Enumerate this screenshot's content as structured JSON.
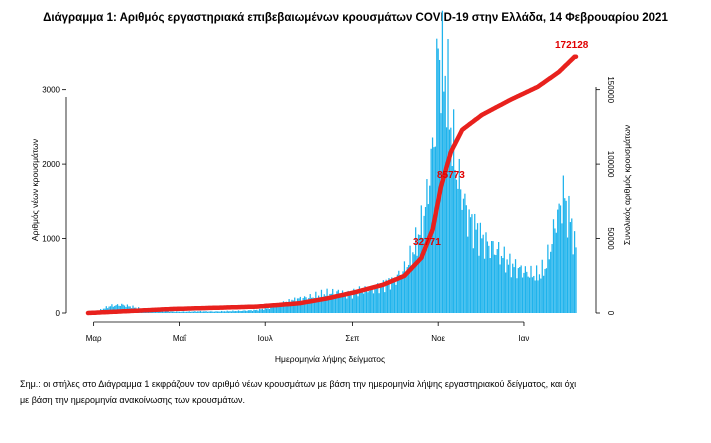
{
  "chart_data": {
    "type": "bar+line",
    "title": "Διάγραμμα 1: Αριθμός εργαστηριακά επιβεβαιωμένων κρουσμάτων COVID-19 στην Ελλάδα, 14 Φεβρουαρίου 2021",
    "xlabel": "Ημερομηνία λήψης δείγματος",
    "ylabel_left": "Αριθμός νέων κρουσμάτων",
    "ylabel_right": "Συνολικός αριθμός κρουσμάτων",
    "ylim_left": [
      0,
      3600
    ],
    "ylim_right": [
      0,
      180000
    ],
    "yticks_left": [
      "0",
      "1000",
      "2000",
      "3000"
    ],
    "yticks_right": [
      "0",
      "50000",
      "100000",
      "150000"
    ],
    "x_months": [
      "Μαρ",
      "Μαΐ",
      "Ιουλ",
      "Σεπ",
      "Νοε",
      "Ιαν"
    ],
    "x_month_day_index": [
      4,
      65,
      126,
      188,
      249,
      310
    ],
    "bar_color": "#1fb3ec",
    "line_color": "#e8211d",
    "daily_keypoints": [
      [
        0,
        8
      ],
      [
        8,
        35
      ],
      [
        16,
        95
      ],
      [
        24,
        110
      ],
      [
        32,
        80
      ],
      [
        40,
        45
      ],
      [
        50,
        25
      ],
      [
        60,
        18
      ],
      [
        70,
        18
      ],
      [
        80,
        22
      ],
      [
        90,
        20
      ],
      [
        100,
        25
      ],
      [
        110,
        30
      ],
      [
        120,
        40
      ],
      [
        130,
        70
      ],
      [
        140,
        140
      ],
      [
        150,
        190
      ],
      [
        160,
        220
      ],
      [
        170,
        260
      ],
      [
        178,
        280
      ],
      [
        186,
        240
      ],
      [
        194,
        300
      ],
      [
        202,
        320
      ],
      [
        210,
        380
      ],
      [
        218,
        450
      ],
      [
        226,
        600
      ],
      [
        232,
        850
      ],
      [
        236,
        1100
      ],
      [
        240,
        1400
      ],
      [
        244,
        2000
      ],
      [
        247,
        2600
      ],
      [
        249,
        3600
      ],
      [
        251,
        3300
      ],
      [
        253,
        3200
      ],
      [
        255,
        3100
      ],
      [
        258,
        2500
      ],
      [
        262,
        1900
      ],
      [
        266,
        1600
      ],
      [
        270,
        1300
      ],
      [
        275,
        1150
      ],
      [
        280,
        1000
      ],
      [
        285,
        900
      ],
      [
        290,
        850
      ],
      [
        295,
        750
      ],
      [
        300,
        650
      ],
      [
        305,
        600
      ],
      [
        310,
        560
      ],
      [
        315,
        520
      ],
      [
        320,
        500
      ],
      [
        325,
        600
      ],
      [
        330,
        950
      ],
      [
        332,
        1200
      ],
      [
        335,
        1350
      ],
      [
        338,
        1600
      ],
      [
        341,
        1350
      ],
      [
        344,
        1200
      ],
      [
        346,
        900
      ]
    ],
    "cumulative_keypoints": [
      [
        0,
        0
      ],
      [
        60,
        2700
      ],
      [
        120,
        4300
      ],
      [
        150,
        6500
      ],
      [
        170,
        9800
      ],
      [
        190,
        14000
      ],
      [
        210,
        19000
      ],
      [
        225,
        25000
      ],
      [
        237,
        37000
      ],
      [
        245,
        56000
      ],
      [
        251,
        85000
      ],
      [
        258,
        108000
      ],
      [
        266,
        123000
      ],
      [
        280,
        133000
      ],
      [
        300,
        143000
      ],
      [
        320,
        152000
      ],
      [
        335,
        162000
      ],
      [
        346,
        172128
      ]
    ],
    "annotations": [
      "172128",
      "85773",
      "32771"
    ],
    "total_days": 348
  },
  "footnote": {
    "line1": "Σημ.: οι στήλες στο Διάγραμμα 1 εκφράζουν τον αριθμό νέων κρουσμάτων με βάση την ημερομηνία λήψης εργαστηριακού δείγματος, και όχι",
    "line2": "με βάση την ημερομηνία ανακοίνωσης των κρουσμάτων."
  }
}
